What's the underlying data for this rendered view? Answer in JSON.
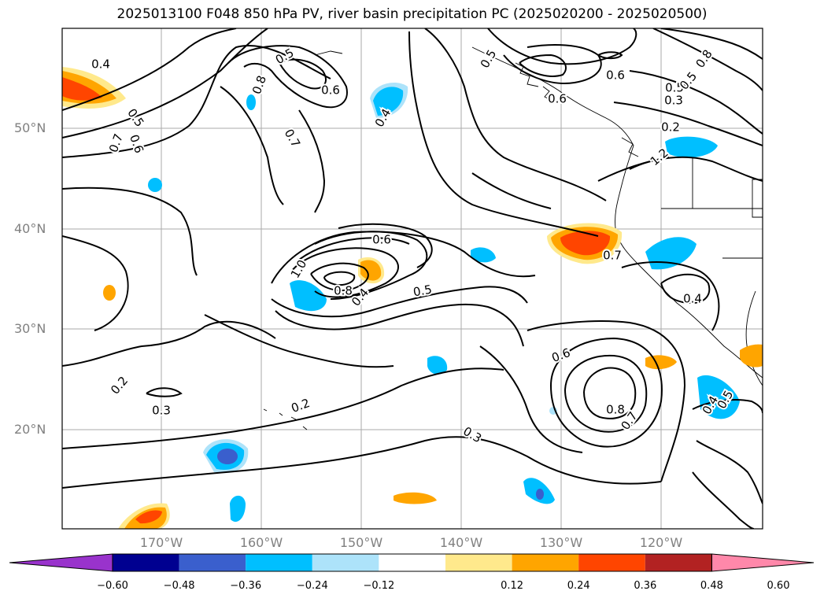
{
  "title": "2025013100 F048 850 hPa PV, river basin precipitation PC (2025020200 - 2025020500)",
  "lat_labels": [
    "50°N",
    "40°N",
    "30°N",
    "20°N"
  ],
  "lon_labels": [
    "170°W",
    "160°W",
    "150°W",
    "140°W",
    "130°W",
    "120°W"
  ],
  "contour_labels": [
    "0.4",
    "0.5",
    "0.7",
    "0.6",
    "0.8",
    "0.5",
    "0.7",
    "0.6",
    "0.4",
    "0.5",
    "0.6",
    "0.6",
    "0.5",
    "0.3",
    "0.2",
    "1.2",
    "0.8",
    "0.5",
    "0.7",
    "0.6",
    "1.0",
    "0.8",
    "0.4",
    "0.5",
    "0.4",
    "0.2",
    "0.3",
    "0.2",
    "0.3",
    "0.6",
    "0.8",
    "0.7",
    "0.4",
    "0.5"
  ],
  "colorbar": {
    "ticks": [
      "−0.60",
      "−0.48",
      "−0.36",
      "−0.24",
      "−0.12",
      "0.12",
      "0.24",
      "0.36",
      "0.48",
      "0.60"
    ],
    "colors": [
      "#9933cc",
      "#000090",
      "#3a5fcd",
      "#00bfff",
      "#ade3fa",
      "#ffffff",
      "#ffe98c",
      "#ffa500",
      "#ff4500",
      "#b22222",
      "#ff88aa"
    ]
  },
  "map_colors": {
    "blue": "#00bfff",
    "light_blue": "#ade3fa",
    "dark_blue": "#3a5fcd",
    "orange": "#ffa500",
    "yellow": "#ffe98c",
    "red": "#ff4500",
    "dark_red": "#b22222"
  }
}
